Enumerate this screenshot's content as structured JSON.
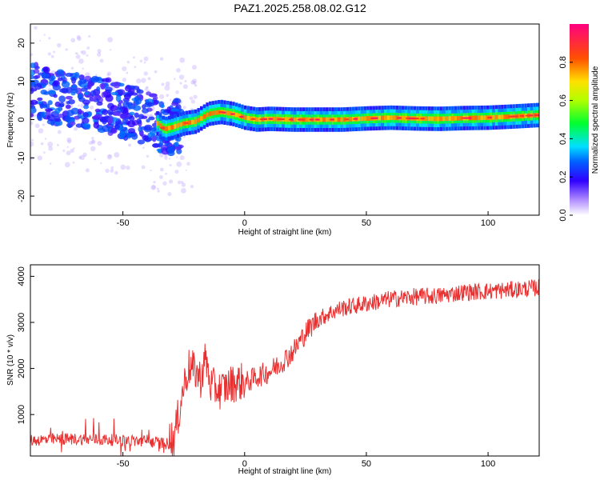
{
  "title": "PAZ1.2025.258.08.02.G12",
  "chart_data": [
    {
      "type": "heatmap",
      "xlabel": "Height of straight line (km)",
      "ylabel": "Frequency (Hz)",
      "xlim": [
        -88,
        121
      ],
      "ylim": [
        -25,
        25
      ],
      "xticks": [
        -50,
        0,
        50,
        100
      ],
      "yticks": [
        -20,
        -10,
        0,
        10,
        20
      ],
      "colorbar": {
        "label": "Normalized spectral amplitude",
        "range": [
          0,
          1
        ],
        "ticks": [
          "0.0",
          "0.2",
          "0.4",
          "0.6",
          "0.8"
        ]
      },
      "ridge": {
        "x": [
          -88,
          -80,
          -70,
          -60,
          -50,
          -42,
          -36,
          -33,
          -30,
          -25,
          -20,
          -15,
          -10,
          -5,
          0,
          5,
          10,
          20,
          30,
          40,
          50,
          60,
          70,
          80,
          90,
          100,
          110,
          121
        ],
        "freq": [
          8,
          6,
          5,
          4,
          2.5,
          1,
          -1,
          -2.5,
          -2,
          -1,
          -0.5,
          1.5,
          2,
          1.5,
          0.5,
          0,
          0.2,
          0,
          0,
          0,
          0.3,
          0.5,
          0.3,
          0.2,
          0.4,
          0.5,
          0.8,
          1.2
        ]
      }
    },
    {
      "type": "line",
      "xlabel": "Height of straight line (km)",
      "ylabel": "SNR (10 * v/v)",
      "xlim": [
        -88,
        121
      ],
      "ylim": [
        100,
        4250
      ],
      "xticks": [
        -50,
        0,
        50,
        100
      ],
      "yticks": [
        1000,
        2000,
        3000,
        4000
      ],
      "color": "#e83030",
      "x": [
        -88,
        -80,
        -70,
        -60,
        -50,
        -40,
        -32,
        -29,
        -27,
        -25,
        -23,
        -20,
        -18,
        -16,
        -14,
        -10,
        -5,
        0,
        5,
        10,
        15,
        20,
        25,
        30,
        35,
        40,
        50,
        60,
        70,
        80,
        90,
        100,
        110,
        121
      ],
      "snr": [
        400,
        420,
        430,
        420,
        400,
        380,
        330,
        360,
        900,
        1500,
        1900,
        1800,
        1650,
        2100,
        1500,
        1400,
        1550,
        1600,
        1750,
        1850,
        2050,
        2300,
        2700,
        3000,
        3150,
        3250,
        3350,
        3450,
        3500,
        3520,
        3600,
        3620,
        3650,
        3700
      ]
    }
  ]
}
